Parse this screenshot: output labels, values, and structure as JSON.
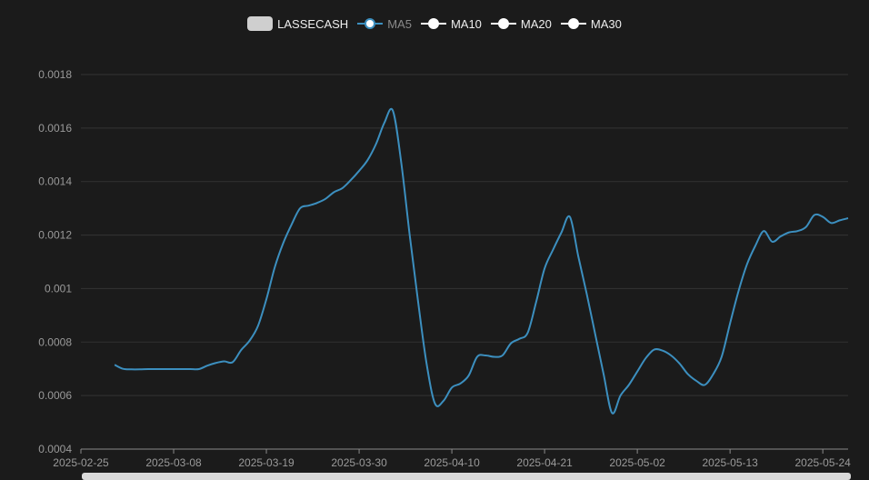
{
  "legend": {
    "items": [
      {
        "label": "LASSECASH",
        "kind": "box",
        "color": "#cfcfcf",
        "active": true
      },
      {
        "label": "MA5",
        "kind": "line",
        "color": "#3c8fbf",
        "active": false
      },
      {
        "label": "MA10",
        "kind": "line",
        "color": "#ffffff",
        "active": true
      },
      {
        "label": "MA20",
        "kind": "line",
        "color": "#ffffff",
        "active": true
      },
      {
        "label": "MA30",
        "kind": "line",
        "color": "#ffffff",
        "active": true
      }
    ]
  },
  "chart_data": {
    "type": "line",
    "x_type": "date",
    "xlim": [
      "2025-02-25",
      "2025-05-27"
    ],
    "ylim": [
      0.0004,
      0.0018
    ],
    "y_ticks": [
      "0.0004",
      "0.0006",
      "0.0008",
      "0.001",
      "0.0012",
      "0.0014",
      "0.0016",
      "0.0018"
    ],
    "x_ticks": [
      "2025-02-25",
      "2025-03-08",
      "2025-03-19",
      "2025-03-30",
      "2025-04-10",
      "2025-04-21",
      "2025-05-02",
      "2025-05-13",
      "2025-05-24"
    ],
    "grid": true,
    "series": [
      {
        "name": "MA5",
        "color": "#3c8fbf",
        "points": [
          [
            "2025-03-01",
            0.000715
          ],
          [
            "2025-03-02",
            0.0007
          ],
          [
            "2025-03-03",
            0.000698
          ],
          [
            "2025-03-04",
            0.000698
          ],
          [
            "2025-03-05",
            0.000699
          ],
          [
            "2025-03-06",
            0.000699
          ],
          [
            "2025-03-07",
            0.000699
          ],
          [
            "2025-03-08",
            0.000699
          ],
          [
            "2025-03-09",
            0.000699
          ],
          [
            "2025-03-10",
            0.000699
          ],
          [
            "2025-03-11",
            0.000699
          ],
          [
            "2025-03-12",
            0.000712
          ],
          [
            "2025-03-13",
            0.000722
          ],
          [
            "2025-03-14",
            0.000728
          ],
          [
            "2025-03-15",
            0.000725
          ],
          [
            "2025-03-16",
            0.00077
          ],
          [
            "2025-03-17",
            0.000805
          ],
          [
            "2025-03-18",
            0.00086
          ],
          [
            "2025-03-19",
            0.00096
          ],
          [
            "2025-03-20",
            0.00108
          ],
          [
            "2025-03-21",
            0.00117
          ],
          [
            "2025-03-22",
            0.00124
          ],
          [
            "2025-03-23",
            0.0013
          ],
          [
            "2025-03-24",
            0.00131
          ],
          [
            "2025-03-25",
            0.00132
          ],
          [
            "2025-03-26",
            0.001335
          ],
          [
            "2025-03-27",
            0.00136
          ],
          [
            "2025-03-28",
            0.001375
          ],
          [
            "2025-03-29",
            0.001405
          ],
          [
            "2025-03-30",
            0.00144
          ],
          [
            "2025-03-31",
            0.00148
          ],
          [
            "2025-04-01",
            0.00154
          ],
          [
            "2025-04-02",
            0.00162
          ],
          [
            "2025-04-03",
            0.001665
          ],
          [
            "2025-04-04",
            0.00147
          ],
          [
            "2025-04-05",
            0.0012
          ],
          [
            "2025-04-06",
            0.00095
          ],
          [
            "2025-04-07",
            0.00072
          ],
          [
            "2025-04-08",
            0.00057
          ],
          [
            "2025-04-09",
            0.00058
          ],
          [
            "2025-04-10",
            0.00063
          ],
          [
            "2025-04-11",
            0.000645
          ],
          [
            "2025-04-12",
            0.000675
          ],
          [
            "2025-04-13",
            0.000745
          ],
          [
            "2025-04-14",
            0.00075
          ],
          [
            "2025-04-15",
            0.000745
          ],
          [
            "2025-04-16",
            0.00075
          ],
          [
            "2025-04-17",
            0.000795
          ],
          [
            "2025-04-18",
            0.000812
          ],
          [
            "2025-04-19",
            0.000835
          ],
          [
            "2025-04-20",
            0.00095
          ],
          [
            "2025-04-21",
            0.001075
          ],
          [
            "2025-04-22",
            0.001145
          ],
          [
            "2025-04-23",
            0.00121
          ],
          [
            "2025-04-24",
            0.001268
          ],
          [
            "2025-04-25",
            0.00112
          ],
          [
            "2025-04-26",
            0.00098
          ],
          [
            "2025-04-27",
            0.00083
          ],
          [
            "2025-04-28",
            0.00068
          ],
          [
            "2025-04-29",
            0.000535
          ],
          [
            "2025-04-30",
            0.0006
          ],
          [
            "2025-05-01",
            0.00064
          ],
          [
            "2025-05-02",
            0.00069
          ],
          [
            "2025-05-03",
            0.00074
          ],
          [
            "2025-05-04",
            0.000772
          ],
          [
            "2025-05-05",
            0.000768
          ],
          [
            "2025-05-06",
            0.00075
          ],
          [
            "2025-05-07",
            0.00072
          ],
          [
            "2025-05-08",
            0.00068
          ],
          [
            "2025-05-09",
            0.000655
          ],
          [
            "2025-05-10",
            0.00064
          ],
          [
            "2025-05-11",
            0.00068
          ],
          [
            "2025-05-12",
            0.000745
          ],
          [
            "2025-05-13",
            0.00087
          ],
          [
            "2025-05-14",
            0.00099
          ],
          [
            "2025-05-15",
            0.00109
          ],
          [
            "2025-05-16",
            0.00116
          ],
          [
            "2025-05-17",
            0.001215
          ],
          [
            "2025-05-18",
            0.001175
          ],
          [
            "2025-05-19",
            0.001195
          ],
          [
            "2025-05-20",
            0.00121
          ],
          [
            "2025-05-21",
            0.001215
          ],
          [
            "2025-05-22",
            0.00123
          ],
          [
            "2025-05-23",
            0.001275
          ],
          [
            "2025-05-24",
            0.001268
          ],
          [
            "2025-05-25",
            0.001245
          ],
          [
            "2025-05-26",
            0.001255
          ],
          [
            "2025-05-27",
            0.001263
          ]
        ]
      }
    ]
  },
  "colors": {
    "background": "#1b1b1b",
    "grid": "#333333",
    "axis": "#8a8a8a",
    "tick_label": "#9a9a9a"
  }
}
